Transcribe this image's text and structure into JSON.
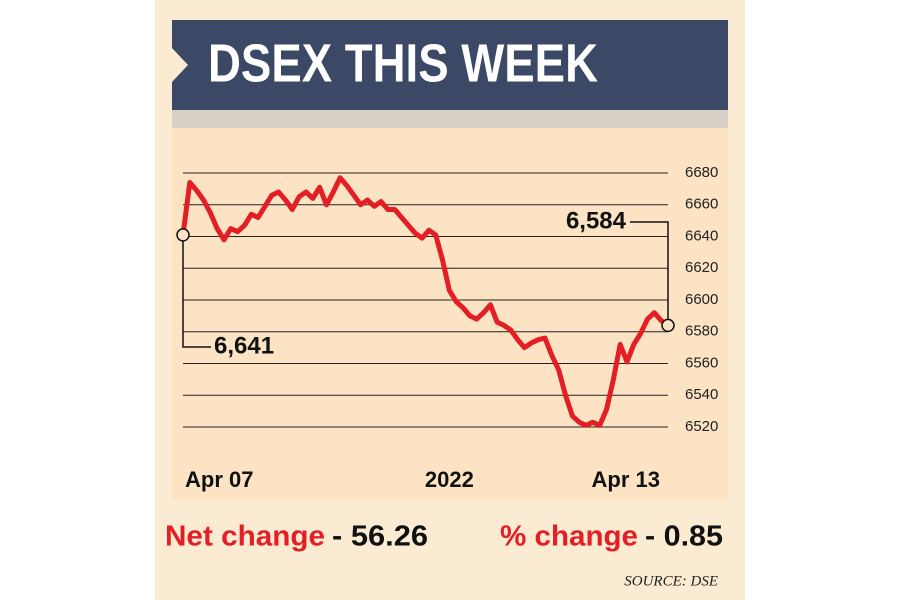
{
  "chart_data": {
    "type": "line",
    "title": "DSEX THIS WEEK",
    "values": [
      6641,
      6674,
      6669,
      6663,
      6655,
      6645,
      6638,
      6645,
      6643,
      6647,
      6654,
      6652,
      6659,
      6666,
      6668,
      6663,
      6657,
      6665,
      6668,
      6664,
      6671,
      6660,
      6668,
      6677,
      6672,
      6666,
      6660,
      6663,
      6659,
      6662,
      6657,
      6657,
      6652,
      6647,
      6642,
      6639,
      6644,
      6641,
      6625,
      6606,
      6599,
      6595,
      6590,
      6588,
      6592,
      6597,
      6586,
      6584,
      6581,
      6575,
      6570,
      6573,
      6575,
      6576,
      6565,
      6556,
      6540,
      6527,
      6523,
      6521,
      6523,
      6521,
      6531,
      6550,
      6572,
      6561,
      6572,
      6579,
      6588,
      6592,
      6587,
      6584
    ],
    "color": "#e31e24",
    "xlim": [
      0,
      71
    ],
    "xticks": [
      {
        "value": 0,
        "label": "Apr 07"
      },
      {
        "value": 39,
        "label": "2022"
      },
      {
        "value": 71,
        "label": "Apr 13"
      }
    ],
    "ylim": [
      6520,
      6680
    ],
    "yticks": [
      6520,
      6540,
      6560,
      6580,
      6600,
      6620,
      6640,
      6660,
      6680
    ],
    "grid": true,
    "start_label": "6,641",
    "end_label": "6,584",
    "net_change_label": "Net change",
    "net_change_value": "- 56.26",
    "pct_change_label": "% change",
    "pct_change_value": "- 0.85",
    "source": "SOURCE: DSE"
  }
}
